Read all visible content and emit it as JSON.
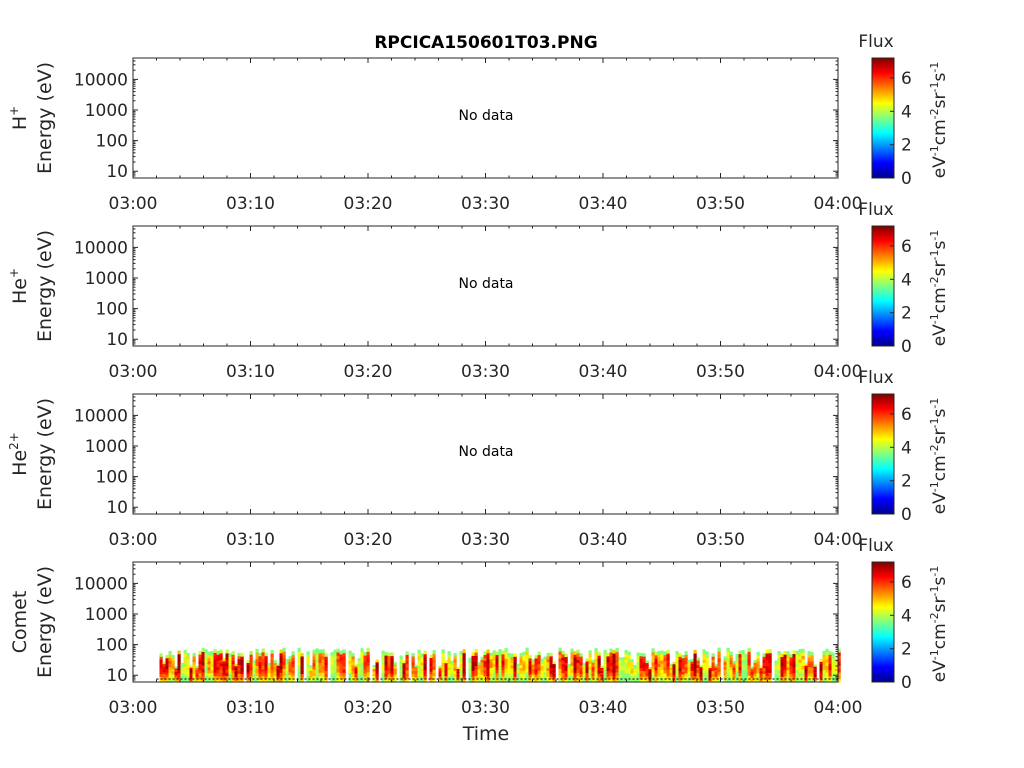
{
  "figure": {
    "title": "RPCICA150601T03.PNG"
  },
  "chart_data": [
    {
      "type": "heatmap",
      "panel": "H+",
      "ylabel": [
        "H+",
        "Energy (eV)"
      ],
      "ylabel_species": "H",
      "ylabel_charge": "+",
      "ylabel_unit": "Energy (eV)",
      "y_scale": "log",
      "ylim": [
        6,
        50000
      ],
      "yticks": [
        10,
        100,
        1000,
        10000
      ],
      "ytick_labels": [
        "10",
        "100",
        "1000",
        "10000"
      ],
      "xlim": [
        "03:00",
        "04:00"
      ],
      "xtick_labels": [
        "03:00",
        "03:10",
        "03:20",
        "03:30",
        "03:40",
        "03:50",
        "04:00"
      ],
      "annotation": "No data",
      "has_data": false,
      "colorbar": {
        "title": "Flux",
        "label": "eV-1cm-2sr-1s-1",
        "range": [
          0,
          7.2
        ],
        "ticks": [
          "0",
          "2",
          "4",
          "6"
        ]
      }
    },
    {
      "type": "heatmap",
      "panel": "He+",
      "ylabel": [
        "He+",
        "Energy (eV)"
      ],
      "ylabel_species": "He",
      "ylabel_charge": "+",
      "ylabel_unit": "Energy (eV)",
      "y_scale": "log",
      "ylim": [
        6,
        50000
      ],
      "yticks": [
        10,
        100,
        1000,
        10000
      ],
      "ytick_labels": [
        "10",
        "100",
        "1000",
        "10000"
      ],
      "xlim": [
        "03:00",
        "04:00"
      ],
      "xtick_labels": [
        "03:00",
        "03:10",
        "03:20",
        "03:30",
        "03:40",
        "03:50",
        "04:00"
      ],
      "annotation": "No data",
      "has_data": false,
      "colorbar": {
        "title": "Flux",
        "label": "eV-1cm-2sr-1s-1",
        "range": [
          0,
          7.2
        ],
        "ticks": [
          "0",
          "2",
          "4",
          "6"
        ]
      }
    },
    {
      "type": "heatmap",
      "panel": "He2+",
      "ylabel": [
        "He2+",
        "Energy (eV)"
      ],
      "ylabel_species": "He",
      "ylabel_charge": "2+",
      "ylabel_unit": "Energy (eV)",
      "y_scale": "log",
      "ylim": [
        6,
        50000
      ],
      "yticks": [
        10,
        100,
        1000,
        10000
      ],
      "ytick_labels": [
        "10",
        "100",
        "1000",
        "10000"
      ],
      "xlim": [
        "03:00",
        "04:00"
      ],
      "xtick_labels": [
        "03:00",
        "03:10",
        "03:20",
        "03:30",
        "03:40",
        "03:50",
        "04:00"
      ],
      "annotation": "No data",
      "has_data": false,
      "colorbar": {
        "title": "Flux",
        "label": "eV-1cm-2sr-1s-1",
        "range": [
          0,
          7.2
        ],
        "ticks": [
          "0",
          "2",
          "4",
          "6"
        ]
      }
    },
    {
      "type": "heatmap",
      "panel": "Comet",
      "ylabel": [
        "Comet",
        "Energy (eV)"
      ],
      "ylabel_species": "Comet",
      "ylabel_charge": "",
      "ylabel_unit": "Energy (eV)",
      "y_scale": "log",
      "ylim": [
        6,
        50000
      ],
      "yticks": [
        10,
        100,
        1000,
        10000
      ],
      "ytick_labels": [
        "10",
        "100",
        "1000",
        "10000"
      ],
      "xlim": [
        "03:00",
        "04:00"
      ],
      "xtick_labels": [
        "03:00",
        "03:10",
        "03:20",
        "03:30",
        "03:40",
        "03:50",
        "04:00"
      ],
      "xlabel": "Time",
      "has_data": true,
      "data_start": "03:02",
      "data_end": "04:00",
      "energy_max": 80,
      "colorbar": {
        "title": "Flux",
        "label": "eV-1cm-2sr-1s-1",
        "range": [
          0,
          7.2
        ],
        "ticks": [
          "0",
          "2",
          "4",
          "6"
        ]
      }
    }
  ]
}
